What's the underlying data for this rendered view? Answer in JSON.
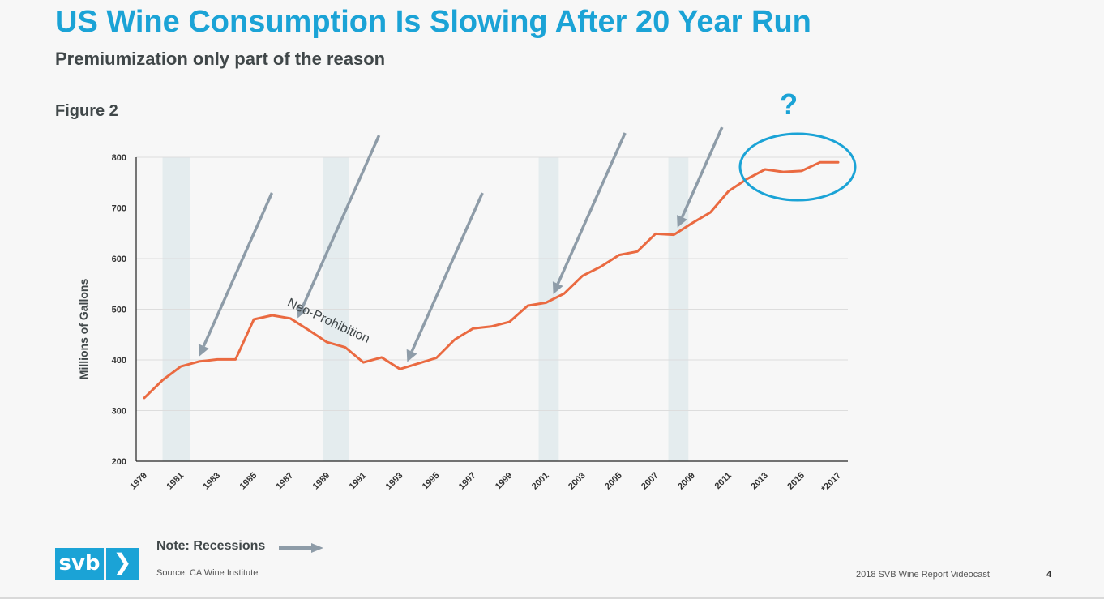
{
  "slide": {
    "title": "US Wine Consumption Is Slowing After 20 Year Run",
    "subtitle": "Premiumization only part of the reason",
    "figure_label": "Figure 2",
    "note": "Note: Recessions",
    "source": "Source: CA Wine Institute",
    "footer": "2018 SVB Wine Report Videocast",
    "page_number": "4",
    "logo_text": "svb",
    "logo_chevron": "❯"
  },
  "colors": {
    "brand": "#1ba3d6",
    "line": "#ea6a41",
    "recession_band": "#e4ecee",
    "arrow": "#8e9ca8",
    "grid": "#dddddd",
    "text_dark": "#404749"
  },
  "chart_data": {
    "type": "line",
    "title": "",
    "xlabel": "",
    "ylabel": "Millions of Gallons",
    "ylim": [
      200,
      800
    ],
    "yticks": [
      200,
      300,
      400,
      500,
      600,
      700,
      800
    ],
    "grid": true,
    "xtick_labels": [
      "1979",
      "1981",
      "1983",
      "1985",
      "1987",
      "1989",
      "1991",
      "1993",
      "1995",
      "1997",
      "1999",
      "2001",
      "2003",
      "2005",
      "2007",
      "2009",
      "2011",
      "2013",
      "2015",
      "*2017"
    ],
    "x": [
      1979,
      1980,
      1981,
      1982,
      1983,
      1984,
      1985,
      1986,
      1987,
      1988,
      1989,
      1990,
      1991,
      1992,
      1993,
      1994,
      1995,
      1996,
      1997,
      1998,
      1999,
      2000,
      2001,
      2002,
      2003,
      2004,
      2005,
      2006,
      2007,
      2008,
      2009,
      2010,
      2011,
      2012,
      2013,
      2014,
      2015,
      2016,
      2017
    ],
    "series": [
      {
        "values": [
          325,
          360,
          387,
          397,
          401,
          401,
          480,
          488,
          482,
          459,
          435,
          425,
          395,
          405,
          382,
          393,
          404,
          440,
          462,
          466,
          475,
          507,
          513,
          531,
          566,
          584,
          607,
          614,
          649,
          647,
          670,
          691,
          733,
          757,
          776,
          771,
          773,
          790,
          790
        ]
      }
    ],
    "recession_bands": [
      [
        1980,
        1981.5
      ],
      [
        1988.8,
        1990.2
      ],
      [
        2000.6,
        2001.7
      ],
      [
        2007.7,
        2008.8
      ]
    ],
    "recession_arrow_targets": [
      1982,
      1987.4,
      1993.4,
      2001.4,
      2008.2
    ],
    "annotations": [
      {
        "text": "Neo-Prohibition",
        "x": 1989,
        "y": 470
      },
      {
        "text": "?",
        "x": 2014.3,
        "y": 885
      }
    ]
  }
}
